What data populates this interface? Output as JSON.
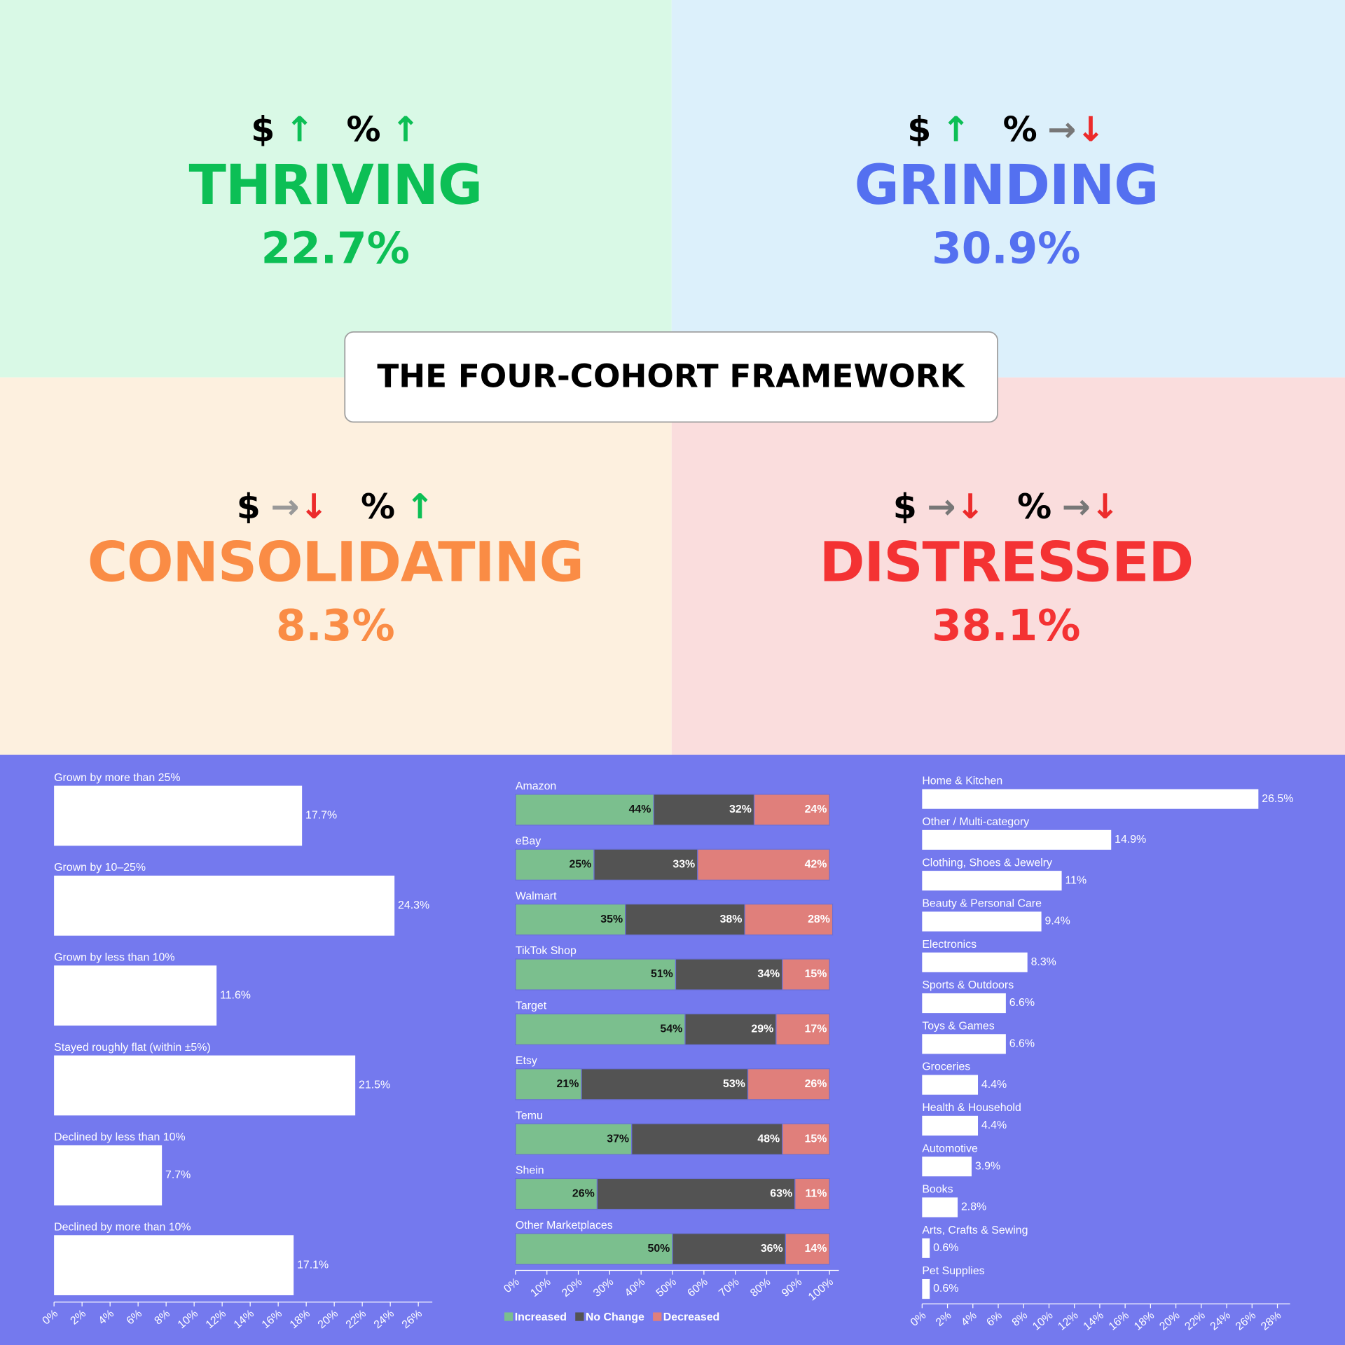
{
  "framework_title": "THE FOUR-COHORT FRAMEWORK",
  "quadrants": [
    {
      "name": "THRIVING",
      "share": "22.7%",
      "color": "#0cbf55",
      "background": "#d9f9e6",
      "indicators": [
        {
          "symbol": "$",
          "arrows": [
            {
              "symbol": "↑",
              "color": "#0cbf55"
            }
          ]
        },
        {
          "symbol": "%",
          "arrows": [
            {
              "symbol": "↑",
              "color": "#0cbf55"
            }
          ]
        }
      ]
    },
    {
      "name": "GRINDING",
      "share": "30.9%",
      "color": "#5470f0",
      "background": "#dcf0fb",
      "indicators": [
        {
          "symbol": "$",
          "arrows": [
            {
              "symbol": "↑",
              "color": "#0cbf55"
            }
          ]
        },
        {
          "symbol": "%",
          "arrows": [
            {
              "symbol": "→",
              "color": "#777777"
            },
            {
              "symbol": "↓",
              "color": "#ec2b2b"
            }
          ]
        }
      ]
    },
    {
      "name": "CONSOLIDATING",
      "share": "8.3%",
      "color": "#fa8c45",
      "background": "#fdf0df",
      "indicators": [
        {
          "symbol": "$",
          "arrows": [
            {
              "symbol": "→",
              "color": "#999999"
            },
            {
              "symbol": "↓",
              "color": "#ec2b2b"
            }
          ]
        },
        {
          "symbol": "%",
          "arrows": [
            {
              "symbol": "↑",
              "color": "#0cbf55"
            }
          ]
        }
      ]
    },
    {
      "name": "DISTRESSED",
      "share": "38.1%",
      "color": "#f43233",
      "background": "#fadddd",
      "indicators": [
        {
          "symbol": "$",
          "arrows": [
            {
              "symbol": "→",
              "color": "#777777"
            },
            {
              "symbol": "↓",
              "color": "#ec2b2b"
            }
          ]
        },
        {
          "symbol": "%",
          "arrows": [
            {
              "symbol": "→",
              "color": "#777777"
            },
            {
              "symbol": "↓",
              "color": "#ec2b2b"
            }
          ]
        }
      ]
    }
  ],
  "chart_data": [
    {
      "type": "bar",
      "color": "#ffffff",
      "categories": [
        "Grown by more than 25%",
        "Grown by 10–25%",
        "Grown by less than 10%",
        "Stayed roughly flat (within ±5%)",
        "Declined by less than 10%",
        "Declined by more than 10%"
      ],
      "values": [
        17.7,
        24.3,
        11.6,
        21.5,
        7.7,
        17.1
      ],
      "value_labels": [
        "17.7%",
        "24.3%",
        "11.6%",
        "21.5%",
        "7.7%",
        "17.1%"
      ],
      "xlim": [
        0,
        27
      ],
      "xticks": [
        {
          "value": 0,
          "label": "0%"
        },
        {
          "value": 2,
          "label": "2%"
        },
        {
          "value": 4,
          "label": "4%"
        },
        {
          "value": 6,
          "label": "6%"
        },
        {
          "value": 8,
          "label": "8%"
        },
        {
          "value": 10,
          "label": "10%"
        },
        {
          "value": 12,
          "label": "12%"
        },
        {
          "value": 14,
          "label": "14%"
        },
        {
          "value": 16,
          "label": "16%"
        },
        {
          "value": 18,
          "label": "18%"
        },
        {
          "value": 20,
          "label": "20%"
        },
        {
          "value": 22,
          "label": "22%"
        },
        {
          "value": 24,
          "label": "24%"
        },
        {
          "value": 26,
          "label": "26%"
        }
      ]
    },
    {
      "type": "stacked_bar",
      "categories": [
        "Amazon",
        "eBay",
        "Walmart",
        "TikTok Shop",
        "Target",
        "Etsy",
        "Temu",
        "Shein",
        "Other Marketplaces"
      ],
      "series": [
        {
          "name": "Increased",
          "color": "#7bbf8e",
          "label_color": "#111111",
          "values": [
            44,
            25,
            35,
            51,
            54,
            21,
            37,
            26,
            50
          ],
          "value_labels": [
            "44%",
            "25%",
            "35%",
            "51%",
            "54%",
            "21%",
            "37%",
            "26%",
            "50%"
          ]
        },
        {
          "name": "No Change",
          "color": "#535353",
          "label_color": "#ffffff",
          "values": [
            32,
            33,
            38,
            34,
            29,
            53,
            48,
            63,
            36
          ],
          "value_labels": [
            "32%",
            "33%",
            "38%",
            "34%",
            "29%",
            "53%",
            "48%",
            "63%",
            "36%"
          ]
        },
        {
          "name": "Decreased",
          "color": "#e07f7b",
          "label_color": "#ffffff",
          "values": [
            24,
            42,
            28,
            15,
            17,
            26,
            15,
            11,
            14
          ],
          "value_labels": [
            "24%",
            "42%",
            "28%",
            "15%",
            "17%",
            "26%",
            "15%",
            "11%",
            "14%"
          ]
        }
      ],
      "xlim": [
        0,
        103
      ],
      "xticks": [
        {
          "value": 0,
          "label": "0%"
        },
        {
          "value": 10,
          "label": "10%"
        },
        {
          "value": 20,
          "label": "20%"
        },
        {
          "value": 30,
          "label": "30%"
        },
        {
          "value": 40,
          "label": "40%"
        },
        {
          "value": 50,
          "label": "50%"
        },
        {
          "value": 60,
          "label": "60%"
        },
        {
          "value": 70,
          "label": "70%"
        },
        {
          "value": 80,
          "label": "80%"
        },
        {
          "value": 90,
          "label": "90%"
        },
        {
          "value": 100,
          "label": "100%"
        }
      ]
    },
    {
      "type": "bar",
      "color": "#ffffff",
      "categories": [
        "Home & Kitchen",
        "Other / Multi-category",
        "Clothing, Shoes & Jewelry",
        "Beauty & Personal Care",
        "Electronics",
        "Sports & Outdoors",
        "Toys & Games",
        "Groceries",
        "Health & Household",
        "Automotive",
        "Books",
        "Arts, Crafts & Sewing",
        "Pet Supplies"
      ],
      "values": [
        26.5,
        14.9,
        11,
        9.4,
        8.3,
        6.6,
        6.6,
        4.4,
        4.4,
        3.9,
        2.8,
        0.6,
        0.6
      ],
      "value_labels": [
        "26.5%",
        "14.9%",
        "11%",
        "9.4%",
        "8.3%",
        "6.6%",
        "6.6%",
        "4.4%",
        "4.4%",
        "3.9%",
        "2.8%",
        "0.6%",
        "0.6%"
      ],
      "xlim": [
        0,
        29
      ],
      "xticks": [
        {
          "value": 0,
          "label": "0%"
        },
        {
          "value": 2,
          "label": "2%"
        },
        {
          "value": 4,
          "label": "4%"
        },
        {
          "value": 6,
          "label": "6%"
        },
        {
          "value": 8,
          "label": "8%"
        },
        {
          "value": 10,
          "label": "10%"
        },
        {
          "value": 12,
          "label": "12%"
        },
        {
          "value": 14,
          "label": "14%"
        },
        {
          "value": 16,
          "label": "16%"
        },
        {
          "value": 18,
          "label": "18%"
        },
        {
          "value": 20,
          "label": "20%"
        },
        {
          "value": 22,
          "label": "22%"
        },
        {
          "value": 24,
          "label": "24%"
        },
        {
          "value": 26,
          "label": "26%"
        },
        {
          "value": 28,
          "label": "28%"
        }
      ]
    }
  ]
}
